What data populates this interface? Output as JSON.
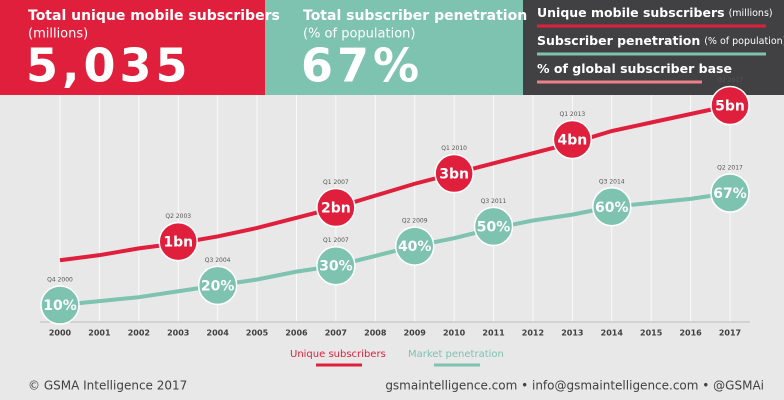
{
  "header": {
    "subscribers": {
      "title": "Total unique mobile subscribers",
      "unit": "(millions)",
      "value": "5,035"
    },
    "penetration": {
      "title": "Total subscriber penetration",
      "unit": "(% of population)",
      "value": "67%"
    },
    "key": [
      {
        "name": "Unique mobile subscribers",
        "unit": "(millions)",
        "color": "#e01f3d"
      },
      {
        "name": "Subscriber penetration",
        "unit": "(% of population)",
        "color": "#7ec2b0"
      },
      {
        "name": "% of global subscriber base",
        "color": "#ec8189"
      }
    ]
  },
  "chart_data": {
    "type": "line",
    "x": [
      2000,
      2001,
      2002,
      2003,
      2004,
      2005,
      2006,
      2007,
      2008,
      2009,
      2010,
      2011,
      2012,
      2013,
      2014,
      2015,
      2016,
      2017
    ],
    "xlim": [
      2000,
      2017
    ],
    "ylim": [
      -1.6,
      5.75
    ],
    "y2lim": [
      -2.7,
      124.5
    ],
    "grid": true,
    "series": [
      {
        "name": "Unique subscribers",
        "color": "#e01f3d",
        "values": [
          0.45,
          0.6,
          0.8,
          0.95,
          1.15,
          1.4,
          1.7,
          2.0,
          2.35,
          2.7,
          3.0,
          3.3,
          3.6,
          3.9,
          4.25,
          4.5,
          4.75,
          5.0
        ],
        "milestones": [
          {
            "period": "Q2 2003",
            "x": 2003,
            "value": 1,
            "label": "1bn"
          },
          {
            "period": "Q1 2007",
            "x": 2007,
            "value": 2,
            "label": "2bn"
          },
          {
            "period": "Q1 2010",
            "x": 2010,
            "value": 3,
            "label": "3bn"
          },
          {
            "period": "Q1 2013",
            "x": 2013,
            "value": 4,
            "label": "4bn"
          },
          {
            "period": "Q2 2017",
            "x": 2017,
            "value": 5,
            "label": "5bn"
          }
        ]
      },
      {
        "name": "Market penetration",
        "color": "#7ec2b0",
        "axis": "y2",
        "values": [
          10,
          12,
          14,
          17,
          20,
          23,
          27,
          30,
          35,
          40,
          44,
          49,
          53,
          56,
          60,
          62,
          64,
          67
        ],
        "milestones": [
          {
            "period": "Q4 2000",
            "x": 2000,
            "value": 10,
            "label": "10%"
          },
          {
            "period": "Q3 2004",
            "x": 2004,
            "value": 20,
            "label": "20%"
          },
          {
            "period": "Q1 2007",
            "x": 2007,
            "value": 30,
            "label": "30%"
          },
          {
            "period": "Q2 2009",
            "x": 2009,
            "value": 40,
            "label": "40%"
          },
          {
            "period": "Q3 2011",
            "x": 2011,
            "value": 50,
            "label": "50%"
          },
          {
            "period": "Q3 2014",
            "x": 2014,
            "value": 60,
            "label": "60%"
          },
          {
            "period": "Q2 2017",
            "x": 2017,
            "value": 67,
            "label": "67%"
          }
        ]
      }
    ]
  },
  "footer": {
    "copyright": "© GSMA Intelligence 2017",
    "contact": "gsmaintelligence.com • info@gsmaintelligence.com • @GSMAi"
  }
}
